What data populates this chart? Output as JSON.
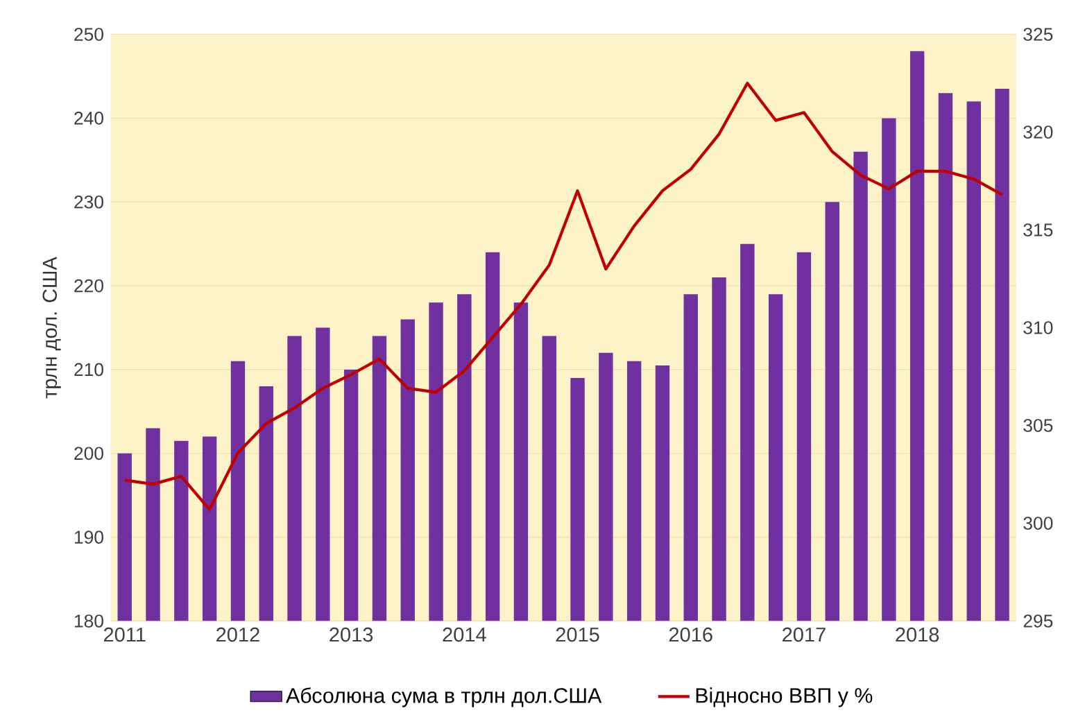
{
  "chart_data": {
    "type": "bar",
    "categories": [
      "2011",
      null,
      null,
      null,
      "2012",
      null,
      null,
      null,
      "2013",
      null,
      null,
      null,
      "2014",
      null,
      null,
      null,
      "2015",
      null,
      null,
      null,
      "2016",
      null,
      null,
      null,
      "2017",
      null,
      null,
      null,
      "2018",
      null,
      null,
      null
    ],
    "series": [
      {
        "name": "Абсолюна сума в трлн дол.США",
        "color": "#7030a0",
        "values": [
          200,
          203,
          201.5,
          202,
          211,
          208,
          214,
          215,
          210,
          214,
          216,
          218,
          219,
          224,
          218,
          214,
          209,
          212,
          211,
          210.5,
          219,
          221,
          225,
          219,
          224,
          230,
          236,
          240,
          248,
          243,
          242,
          243.5
        ]
      },
      {
        "name": "Відносно ВВП у %",
        "type": "line",
        "axis": "y2",
        "color": "#c00000",
        "values": [
          302.2,
          302.0,
          302.4,
          300.7,
          303.6,
          305.1,
          305.9,
          306.9,
          307.6,
          308.4,
          306.9,
          306.7,
          307.8,
          309.5,
          311.2,
          313.2,
          317.0,
          313.0,
          315.2,
          317.0,
          318.1,
          319.9,
          322.5,
          320.6,
          321.0,
          319.0,
          317.8,
          317.1,
          318.0,
          318.0,
          317.6,
          316.8
        ]
      }
    ],
    "ylabel": "трлн дол. США",
    "ylim": [
      180,
      250
    ],
    "yticks": [
      180,
      190,
      200,
      210,
      220,
      230,
      240,
      250
    ],
    "y2lim": [
      295,
      325
    ],
    "y2ticks": [
      295,
      300,
      305,
      310,
      315,
      320,
      325
    ],
    "grid": "y",
    "legend": "bottom"
  }
}
